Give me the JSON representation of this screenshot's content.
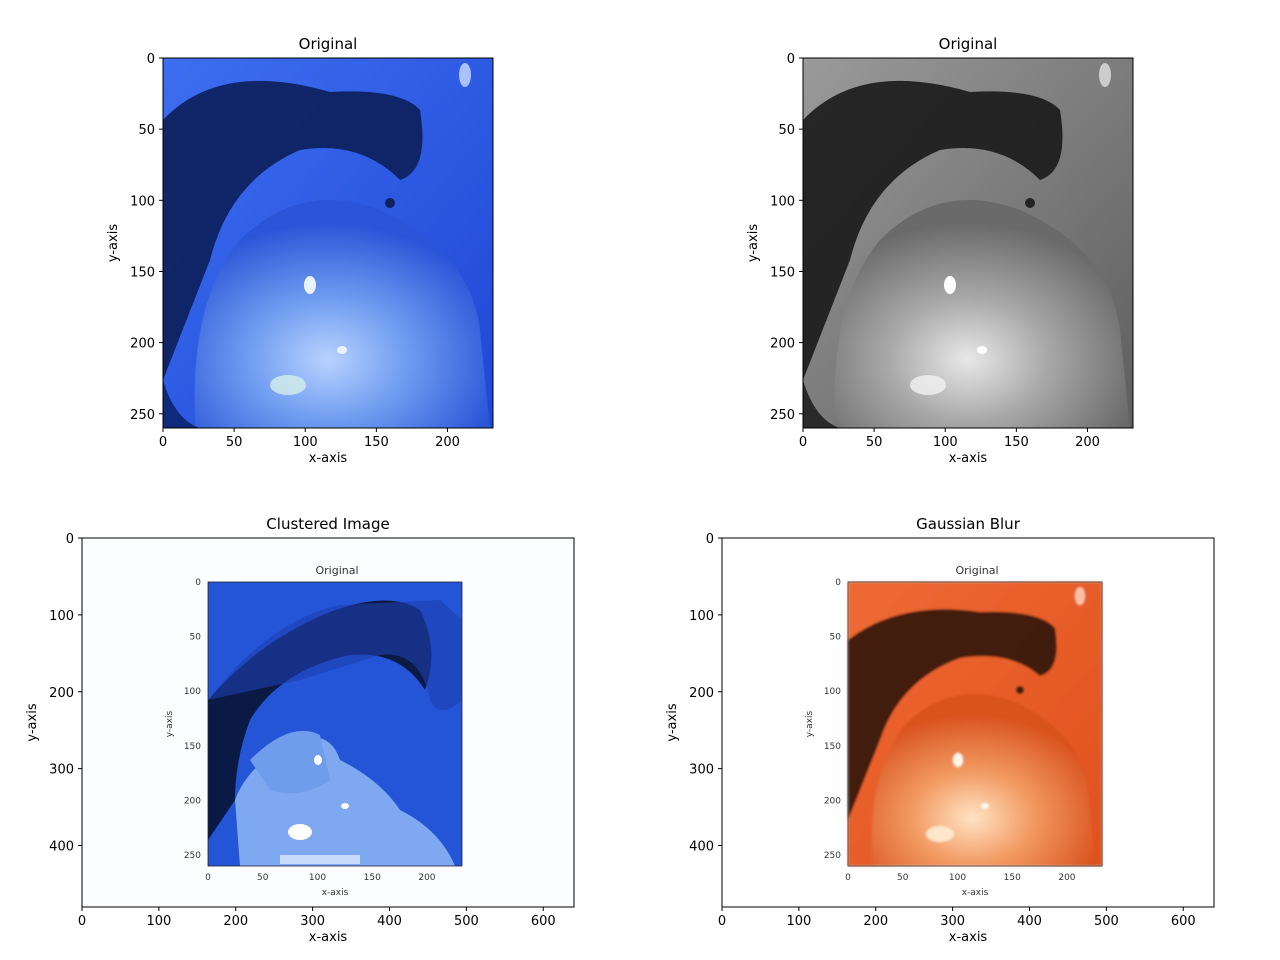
{
  "chart_data": [
    {
      "type": "image",
      "title": "Original",
      "image_desc": "endoscopic-colon-blue",
      "xlabel": "x-axis",
      "ylabel": "y-axis",
      "xticks": [
        0,
        50,
        100,
        150,
        200
      ],
      "yticks": [
        0,
        50,
        100,
        150,
        200,
        250
      ],
      "xlim": [
        0,
        232
      ],
      "ylim": [
        260,
        0
      ]
    },
    {
      "type": "image",
      "title": "Original",
      "image_desc": "endoscopic-colon-grayscale",
      "xlabel": "x-axis",
      "ylabel": "y-axis",
      "xticks": [
        0,
        50,
        100,
        150,
        200
      ],
      "yticks": [
        0,
        50,
        100,
        150,
        200,
        250
      ],
      "xlim": [
        0,
        232
      ],
      "ylim": [
        260,
        0
      ]
    },
    {
      "type": "image",
      "title": "Clustered Image",
      "image_desc": "clustered-blue-segmentation",
      "xlabel": "x-axis",
      "ylabel": "y-axis",
      "xticks": [
        0,
        100,
        200,
        300,
        400,
        500,
        600
      ],
      "yticks": [
        0,
        100,
        200,
        300,
        400
      ],
      "xlim": [
        0,
        640
      ],
      "ylim": [
        480,
        0
      ],
      "inner": {
        "title": "Original",
        "xlabel": "x-axis",
        "ylabel": "y-axis",
        "xticks": [
          0,
          50,
          100,
          150,
          200
        ],
        "yticks": [
          0,
          50,
          100,
          150,
          200,
          250
        ]
      }
    },
    {
      "type": "image",
      "title": "Gaussian Blur",
      "image_desc": "endoscopic-colon-orange-blurred",
      "xlabel": "x-axis",
      "ylabel": "y-axis",
      "xticks": [
        0,
        100,
        200,
        300,
        400,
        500,
        600
      ],
      "yticks": [
        0,
        100,
        200,
        300,
        400
      ],
      "xlim": [
        0,
        640
      ],
      "ylim": [
        480,
        0
      ],
      "inner": {
        "title": "Original",
        "xlabel": "x-axis",
        "ylabel": "y-axis",
        "xticks": [
          0,
          50,
          100,
          150,
          200
        ],
        "yticks": [
          0,
          50,
          100,
          150,
          200,
          250
        ]
      }
    }
  ]
}
